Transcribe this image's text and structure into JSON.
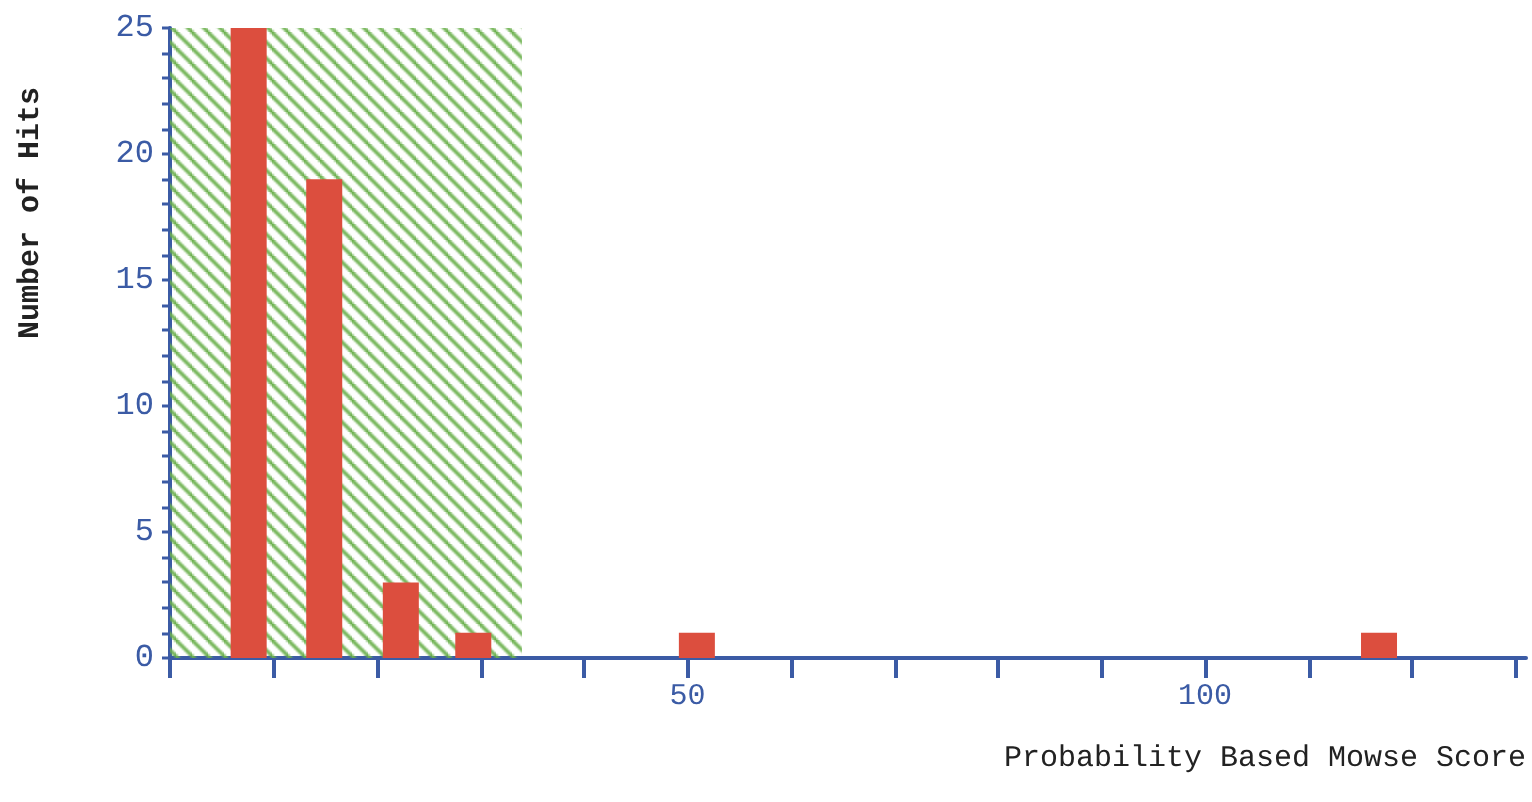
{
  "chart_data": {
    "type": "bar",
    "xlabel": "Probability Based Mowse Score",
    "ylabel": "Number of Hits",
    "x": [
      7.6,
      14.9,
      22.3,
      29.3,
      50.9,
      116.8
    ],
    "series": [
      {
        "color": "#dc4e3e",
        "values": [
          25,
          19,
          3,
          1,
          1,
          1
        ]
      }
    ],
    "xlim": [
      0,
      131
    ],
    "ylim": [
      0,
      25
    ],
    "xticks": [
      {
        "value": 0,
        "label": null
      },
      {
        "value": 10,
        "label": null
      },
      {
        "value": 20,
        "label": null
      },
      {
        "value": 30,
        "label": null
      },
      {
        "value": 40,
        "label": null
      },
      50,
      {
        "value": 60,
        "label": null
      },
      {
        "value": 70,
        "label": null
      },
      {
        "value": 80,
        "label": null
      },
      {
        "value": 90,
        "label": null
      },
      100,
      {
        "value": 110,
        "label": null
      },
      {
        "value": 120,
        "label": null
      },
      {
        "value": 130,
        "label": null
      }
    ],
    "yticks": [
      0,
      {
        "value": 1,
        "label": null
      },
      {
        "value": 2,
        "label": null
      },
      {
        "value": 3,
        "label": null
      },
      {
        "value": 4,
        "label": null
      },
      5,
      {
        "value": 6,
        "label": null
      },
      {
        "value": 7,
        "label": null
      },
      {
        "value": 8,
        "label": null
      },
      {
        "value": 9,
        "label": null
      },
      10,
      {
        "value": 11,
        "label": null
      },
      {
        "value": 12,
        "label": null
      },
      {
        "value": 13,
        "label": null
      },
      {
        "value": 14,
        "label": null
      },
      15,
      {
        "value": 16,
        "label": null
      },
      {
        "value": 17,
        "label": null
      },
      {
        "value": 18,
        "label": null
      },
      {
        "value": 19,
        "label": null
      },
      20,
      {
        "value": 21,
        "label": null
      },
      {
        "value": 22,
        "label": null
      },
      {
        "value": 23,
        "label": null
      },
      {
        "value": 24,
        "label": null
      },
      25
    ],
    "bands": [
      {
        "axis": "x",
        "from": 0,
        "to": 34,
        "color": "#6ab04c"
      }
    ],
    "grid": false
  }
}
